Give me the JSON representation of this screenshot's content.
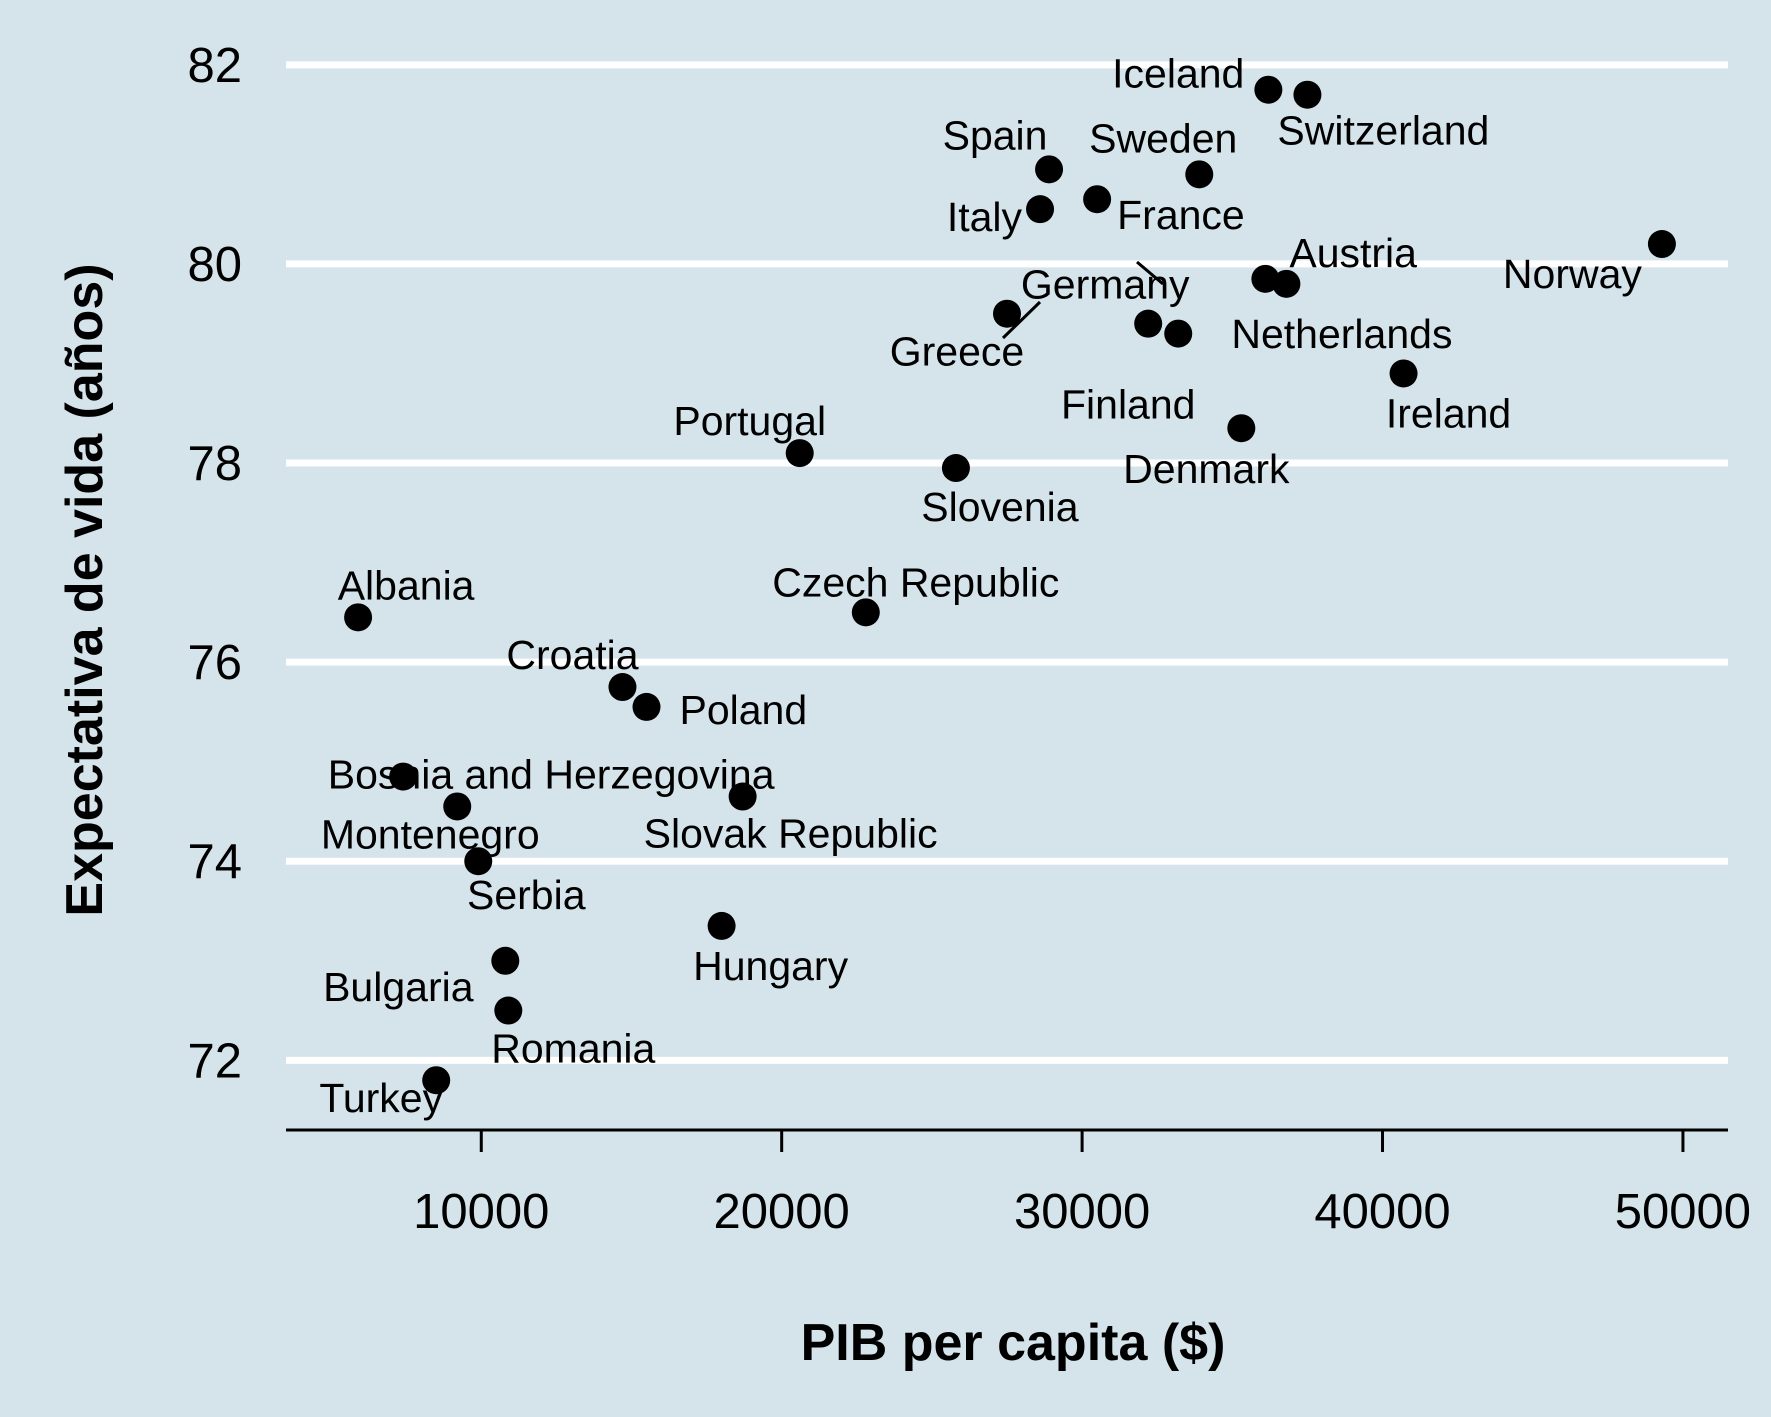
{
  "chart_data": {
    "type": "scatter",
    "xlabel": "PIB per capita ($)",
    "ylabel": "Expectativa de vida (años)",
    "xlim": [
      3500,
      51500
    ],
    "ylim": [
      71.3,
      82.35
    ],
    "x_ticks": [
      10000,
      20000,
      30000,
      40000,
      50000
    ],
    "y_ticks": [
      72,
      74,
      76,
      78,
      80,
      82
    ],
    "grid": "horizontal",
    "background": "#d5e4eb",
    "point_color": "#000000",
    "points": [
      {
        "label": "Iceland",
        "x": 36200,
        "y": 81.75
      },
      {
        "label": "Switzerland",
        "x": 37500,
        "y": 81.7
      },
      {
        "label": "Spain",
        "x": 28900,
        "y": 80.95
      },
      {
        "label": "Sweden",
        "x": 33900,
        "y": 80.9
      },
      {
        "label": "Italy",
        "x": 28600,
        "y": 80.55
      },
      {
        "label": "France",
        "x": 30500,
        "y": 80.65
      },
      {
        "label": "Norway",
        "x": 49300,
        "y": 80.2
      },
      {
        "label": "Austria",
        "x": 36100,
        "y": 79.85
      },
      {
        "label": "Netherlands",
        "x": 36800,
        "y": 79.8
      },
      {
        "label": "Germany",
        "x": 32200,
        "y": 79.4
      },
      {
        "label": "Finland",
        "x": 33200,
        "y": 79.3
      },
      {
        "label": "Greece",
        "x": 27500,
        "y": 79.5
      },
      {
        "label": "Ireland",
        "x": 40700,
        "y": 78.9
      },
      {
        "label": "Denmark",
        "x": 35300,
        "y": 78.35
      },
      {
        "label": "Portugal",
        "x": 20600,
        "y": 78.1
      },
      {
        "label": "Slovenia",
        "x": 25800,
        "y": 77.95
      },
      {
        "label": "Czech Republic",
        "x": 22800,
        "y": 76.5
      },
      {
        "label": "Albania",
        "x": 5900,
        "y": 76.45
      },
      {
        "label": "Croatia",
        "x": 14700,
        "y": 75.75
      },
      {
        "label": "Poland",
        "x": 15500,
        "y": 75.55
      },
      {
        "label": "Bosnia and Herzegovina",
        "x": 7400,
        "y": 74.85
      },
      {
        "label": "Montenegro",
        "x": 9200,
        "y": 74.55
      },
      {
        "label": "Slovak Republic",
        "x": 18700,
        "y": 74.65
      },
      {
        "label": "Serbia",
        "x": 9900,
        "y": 74.0
      },
      {
        "label": "Hungary",
        "x": 18000,
        "y": 73.35
      },
      {
        "label": "Bulgaria",
        "x": 10800,
        "y": 73.0
      },
      {
        "label": "Romania",
        "x": 10900,
        "y": 72.5
      },
      {
        "label": "Turkey",
        "x": 8500,
        "y": 71.8
      }
    ]
  }
}
